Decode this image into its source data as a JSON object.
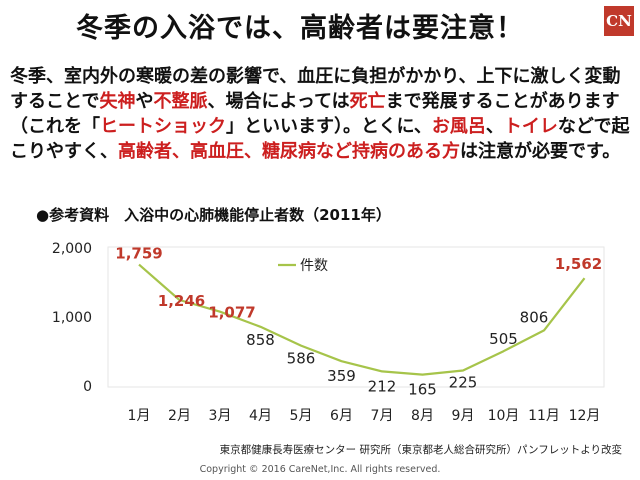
{
  "logo": {
    "text": "CN",
    "color": "#c0392b"
  },
  "title": "冬季の入浴では、高齢者は要注意！",
  "intro": [
    {
      "text": "冬季、室内外の寒暖の差の影響で、血圧に負担がかかり、上下に激しく変動することで",
      "hl": false
    },
    {
      "text": "失神",
      "hl": true
    },
    {
      "text": "や",
      "hl": false
    },
    {
      "text": "不整脈",
      "hl": true
    },
    {
      "text": "、場合によっては",
      "hl": false
    },
    {
      "text": "死亡",
      "hl": true
    },
    {
      "text": "まで発展することがあります（これを「",
      "hl": false
    },
    {
      "text": "ヒートショック",
      "hl": true
    },
    {
      "text": "」といいます）。とくに、",
      "hl": false
    },
    {
      "text": "お風呂",
      "hl": true
    },
    {
      "text": "、",
      "hl": false
    },
    {
      "text": "トイレ",
      "hl": true
    },
    {
      "text": "などで起こりやすく、",
      "hl": false
    },
    {
      "text": "高齢者、高血圧、糖尿病など持病のある方",
      "hl": true
    },
    {
      "text": "は注意が必要です。",
      "hl": false
    }
  ],
  "chart_title": "●参考資料　入浴中の心肺機能停止者数（2011年）",
  "chart_data": {
    "type": "line",
    "title": "参考資料　入浴中の心肺機能停止者数（2011年）",
    "categories": [
      "1月",
      "2月",
      "3月",
      "4月",
      "5月",
      "6月",
      "7月",
      "8月",
      "9月",
      "10月",
      "11月",
      "12月"
    ],
    "series": [
      {
        "name": "件数",
        "values": [
          1759,
          1246,
          1077,
          858,
          586,
          359,
          212,
          165,
          225,
          505,
          806,
          1562
        ],
        "color": "#a6c44a"
      }
    ],
    "highlight_indices": [
      0,
      1,
      2,
      11
    ],
    "highlight_color": "#c0392b",
    "label_color": "#222222",
    "yticks": [
      "0",
      "1,000",
      "2,000"
    ],
    "ytick_values": [
      0,
      1000,
      2000
    ],
    "ylim": [
      0,
      2000
    ],
    "legend": "top-center",
    "grid": false
  },
  "source": "東京都健康長寿医療センター 研究所（東京都老人総合研究所）パンフレットより改変",
  "copyright": "Copyright © 2016 CareNet,Inc. All rights reserved."
}
